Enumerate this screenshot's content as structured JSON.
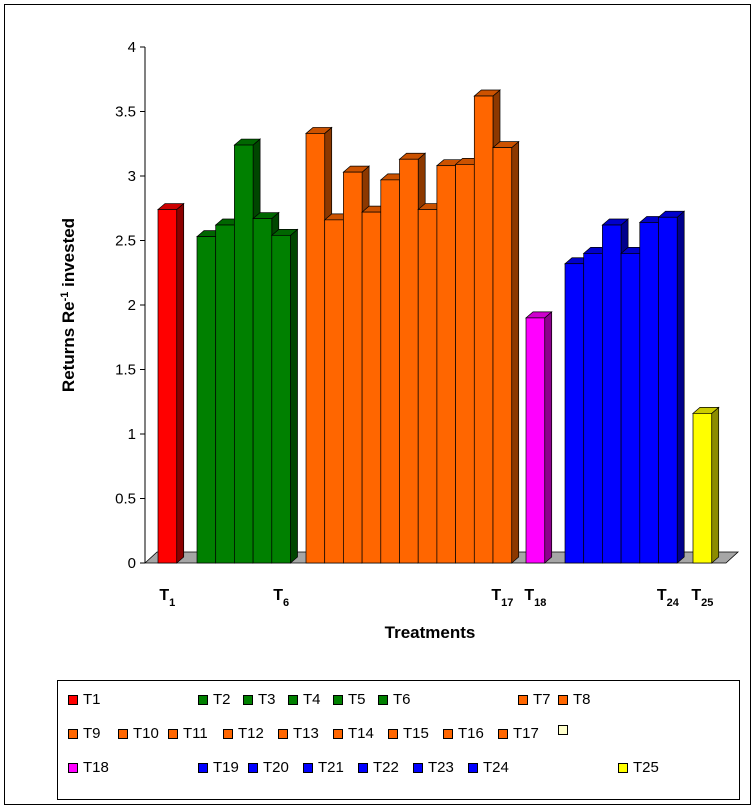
{
  "chart_data": {
    "type": "bar",
    "xlabel": "Treatments",
    "ylabel_main": "Returns Re",
    "ylabel_sup": "-1",
    "ylabel_tail": " invested",
    "ylim": [
      0,
      4
    ],
    "yticks": [
      "0",
      "0.5",
      "1",
      "1.5",
      "2",
      "2.5",
      "3",
      "3.5",
      "4"
    ],
    "categories": [
      "T1",
      "T2",
      "T3",
      "T4",
      "T5",
      "T6",
      "T7",
      "T8",
      "T9",
      "T10",
      "T11",
      "T12",
      "T13",
      "T14",
      "T15",
      "T16",
      "T17",
      "T18",
      "T19",
      "T20",
      "T21",
      "T22",
      "T23",
      "T24",
      "T25"
    ],
    "values": [
      2.74,
      2.53,
      2.62,
      3.24,
      2.67,
      2.54,
      3.33,
      2.66,
      3.03,
      2.72,
      2.97,
      3.13,
      2.74,
      3.08,
      3.09,
      3.62,
      3.22,
      1.9,
      2.32,
      2.4,
      2.62,
      2.4,
      2.64,
      2.68,
      1.16
    ],
    "colors": [
      "#ff0000",
      "#008000",
      "#008000",
      "#008000",
      "#008000",
      "#008000",
      "#ff6600",
      "#ff6600",
      "#ff6600",
      "#ff6600",
      "#ff6600",
      "#ff6600",
      "#ff6600",
      "#ff6600",
      "#ff6600",
      "#ff6600",
      "#ff6600",
      "#ff00ff",
      "#0000ff",
      "#0000ff",
      "#0000ff",
      "#0000ff",
      "#0000ff",
      "#0000ff",
      "#ffff00"
    ],
    "axis_labels": [
      {
        "base": "T",
        "sub": "1",
        "index": 0
      },
      {
        "base": "T",
        "sub": "6",
        "index": 5
      },
      {
        "base": "T",
        "sub": "17",
        "index": 16
      },
      {
        "base": "T",
        "sub": "18",
        "index": 17
      },
      {
        "base": "T",
        "sub": "24",
        "index": 23
      },
      {
        "base": "T",
        "sub": "25",
        "index": 24
      }
    ],
    "legend": {
      "placement": "bottom",
      "rows": [
        [
          {
            "label": "T1",
            "color": "#ff0000"
          },
          {
            "label": "T2",
            "color": "#008000"
          },
          {
            "label": "T3",
            "color": "#008000"
          },
          {
            "label": "T4",
            "color": "#008000"
          },
          {
            "label": "T5",
            "color": "#008000"
          },
          {
            "label": "T6",
            "color": "#008000"
          },
          {
            "label": "T7",
            "color": "#ff6600"
          },
          {
            "label": "T8",
            "color": "#ff6600"
          }
        ],
        [
          {
            "label": "T9",
            "color": "#ff6600"
          },
          {
            "label": "T10",
            "color": "#ff6600"
          },
          {
            "label": "T11",
            "color": "#ff6600"
          },
          {
            "label": "T12",
            "color": "#ff6600"
          },
          {
            "label": "T13",
            "color": "#ff6600"
          },
          {
            "label": "T14",
            "color": "#ff6600"
          },
          {
            "label": "T15",
            "color": "#ff6600"
          },
          {
            "label": "T16",
            "color": "#ff6600"
          },
          {
            "label": "T17",
            "color": "#ff6600"
          },
          {
            "label": "",
            "color": "#ffffcc"
          }
        ],
        [
          {
            "label": "T18",
            "color": "#ff00ff"
          },
          {
            "label": "T19",
            "color": "#0000ff"
          },
          {
            "label": "T20",
            "color": "#0000ff"
          },
          {
            "label": "T21",
            "color": "#0000ff"
          },
          {
            "label": "T22",
            "color": "#0000ff"
          },
          {
            "label": "T23",
            "color": "#0000ff"
          },
          {
            "label": "T24",
            "color": "#0000ff"
          },
          {
            "label": "T25",
            "color": "#ffff00"
          }
        ]
      ]
    }
  }
}
